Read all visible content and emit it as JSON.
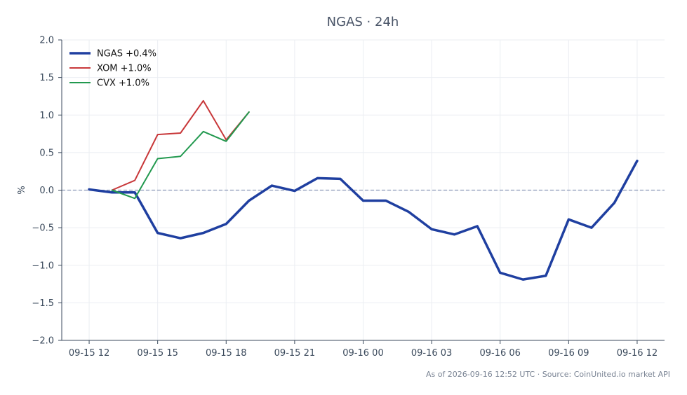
{
  "chart_data": {
    "type": "line",
    "title": "NGAS · 24h",
    "ylabel": "%",
    "xlabel": "",
    "ylim": [
      -2.0,
      2.0
    ],
    "xlim": [
      -1.2,
      25.2
    ],
    "yticks": [
      2.0,
      1.5,
      1.0,
      0.5,
      0.0,
      -0.5,
      -1.0,
      -1.5,
      -2.0
    ],
    "ytick_labels": [
      "2.0",
      "1.5",
      "1.0",
      "0.5",
      "0.0",
      "−0.5",
      "−1.0",
      "−1.5",
      "−2.0"
    ],
    "xticks": [
      0,
      3,
      6,
      9,
      12,
      15,
      18,
      21,
      24
    ],
    "xtick_labels": [
      "09-15 12",
      "09-15 15",
      "09-15 18",
      "09-15 21",
      "09-16 00",
      "09-16 03",
      "09-16 06",
      "09-16 09",
      "09-16 12"
    ],
    "zero_line": {
      "value": 0.0,
      "style": "dashed",
      "color": "#8a98b8"
    },
    "grid": true,
    "legend_position": "top-left",
    "series": [
      {
        "name": "NGAS +0.4%",
        "color": "#1f3fa0",
        "width": "thick",
        "x": [
          0,
          1,
          2,
          3,
          4,
          5,
          6,
          7,
          8,
          9,
          10,
          11,
          12,
          13,
          14,
          15,
          16,
          17,
          18,
          19,
          20,
          21,
          22,
          23,
          24
        ],
        "y": [
          0.01,
          -0.03,
          -0.03,
          -0.57,
          -0.64,
          -0.57,
          -0.45,
          -0.14,
          0.06,
          -0.01,
          0.16,
          0.15,
          -0.14,
          -0.14,
          -0.29,
          -0.52,
          -0.59,
          -0.48,
          -1.1,
          -1.19,
          -1.14,
          -0.39,
          -0.5,
          -0.17,
          0.39
        ]
      },
      {
        "name": "XOM +1.0%",
        "color": "#c8383a",
        "width": "thin",
        "x": [
          1,
          2,
          3,
          4,
          5,
          6,
          7
        ],
        "y": [
          0.0,
          0.13,
          0.74,
          0.76,
          1.19,
          0.67,
          1.04
        ]
      },
      {
        "name": "CVX +1.0%",
        "color": "#22994f",
        "width": "thin",
        "x": [
          1,
          2,
          3,
          4,
          5,
          6,
          7
        ],
        "y": [
          0.0,
          -0.11,
          0.42,
          0.45,
          0.78,
          0.65,
          1.04
        ]
      }
    ]
  },
  "footer": {
    "text": "As of 2026-09-16 12:52 UTC · Source: CoinUnited.io market API"
  }
}
